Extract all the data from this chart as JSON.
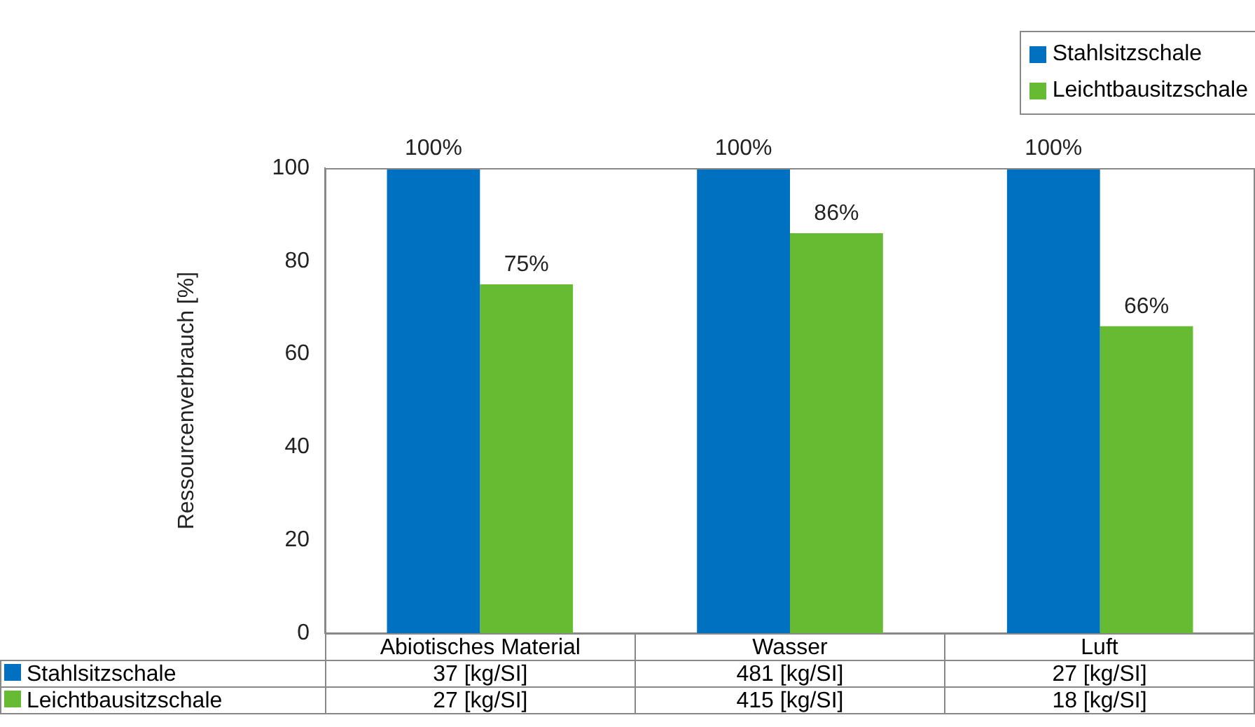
{
  "chart_data": {
    "type": "bar",
    "ylabel": "Ressourcenverbrauch [%]",
    "categories": [
      "Abiotisches Material",
      "Wasser",
      "Luft"
    ],
    "series": [
      {
        "name": "Stahlsitzschale",
        "color": "#0070c0",
        "values": [
          100,
          100,
          100
        ],
        "value_labels": [
          "100%",
          "100%",
          "100%"
        ]
      },
      {
        "name": "Leichtbausitzschale",
        "color": "#66bb33",
        "values": [
          75,
          86,
          66
        ],
        "value_labels": [
          "75%",
          "86%",
          "66%"
        ]
      }
    ],
    "ylim": [
      0,
      100
    ],
    "yticks": [
      0,
      20,
      40,
      60,
      80,
      100
    ],
    "grid": false,
    "legend": "top right",
    "annotations": [
      "37 [kg/SI]",
      "481 [kg/SI]",
      "27 [kg/SI]",
      "27 [kg/SI]",
      "415 [kg/SI]",
      "18 [kg/SI]"
    ]
  }
}
